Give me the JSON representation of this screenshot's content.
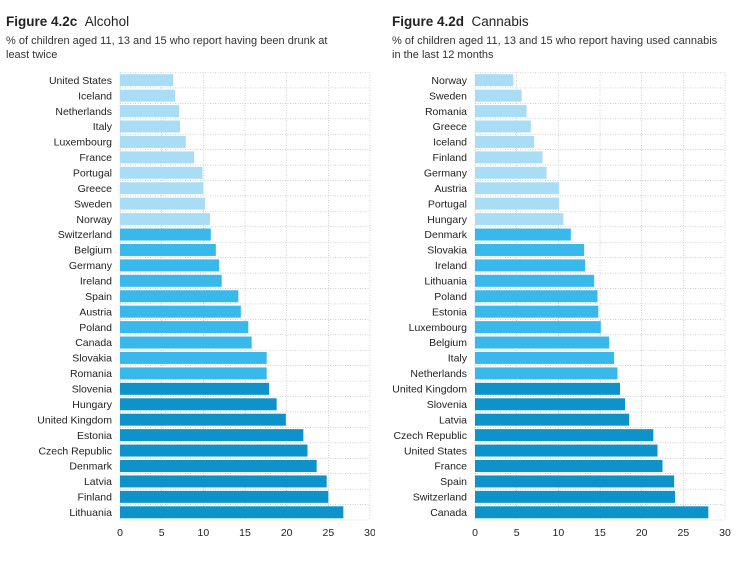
{
  "colors": {
    "light": "#a9dcf5",
    "mid": "#39b9eb",
    "dark": "#0d93c9",
    "grid": "#b5b5b5"
  },
  "chart_data": [
    {
      "type": "bar",
      "orientation": "horizontal",
      "figure_number": "Figure 4.2c",
      "title": "Alcohol",
      "subtitle": "% of children aged 11, 13 and 15 who report having been drunk at least twice",
      "categories": [
        "United States",
        "Iceland",
        "Netherlands",
        "Italy",
        "Luxembourg",
        "France",
        "Portugal",
        "Greece",
        "Sweden",
        "Norway",
        "Switzerland",
        "Belgium",
        "Germany",
        "Ireland",
        "Spain",
        "Austria",
        "Poland",
        "Canada",
        "Slovakia",
        "Romania",
        "Slovenia",
        "Hungary",
        "United Kingdom",
        "Estonia",
        "Czech Republic",
        "Denmark",
        "Latvia",
        "Finland",
        "Lithuania"
      ],
      "values": [
        6.4,
        6.6,
        7.1,
        7.2,
        7.9,
        8.9,
        9.9,
        10.0,
        10.2,
        10.8,
        10.9,
        11.5,
        11.9,
        12.2,
        14.2,
        14.5,
        15.4,
        15.8,
        17.6,
        17.6,
        17.9,
        18.8,
        19.9,
        22.0,
        22.5,
        23.6,
        24.8,
        25.0,
        26.8
      ],
      "tiers": [
        "light",
        "light",
        "light",
        "light",
        "light",
        "light",
        "light",
        "light",
        "light",
        "light",
        "mid",
        "mid",
        "mid",
        "mid",
        "mid",
        "mid",
        "mid",
        "mid",
        "mid",
        "mid",
        "dark",
        "dark",
        "dark",
        "dark",
        "dark",
        "dark",
        "dark",
        "dark",
        "dark"
      ],
      "xlim": [
        0,
        30
      ],
      "xticks": [
        0,
        5,
        10,
        15,
        20,
        25,
        30
      ],
      "grid": true
    },
    {
      "type": "bar",
      "orientation": "horizontal",
      "figure_number": "Figure 4.2d",
      "title": "Cannabis",
      "subtitle": "% of children aged 11, 13 and 15 who report having used cannabis in the last 12 months",
      "categories": [
        "Norway",
        "Sweden",
        "Romania",
        "Greece",
        "Iceland",
        "Finland",
        "Germany",
        "Austria",
        "Portugal",
        "Hungary",
        "Denmark",
        "Slovakia",
        "Ireland",
        "Lithuania",
        "Poland",
        "Estonia",
        "Luxembourg",
        "Belgium",
        "Italy",
        "Netherlands",
        "United Kingdom",
        "Slovenia",
        "Latvia",
        "Czech Republic",
        "United States",
        "France",
        "Spain",
        "Switzerland",
        "Canada"
      ],
      "values": [
        4.6,
        5.6,
        6.2,
        6.7,
        7.1,
        8.1,
        8.6,
        10.1,
        10.1,
        10.6,
        11.5,
        13.1,
        13.2,
        14.3,
        14.7,
        14.8,
        15.1,
        16.1,
        16.7,
        17.1,
        17.4,
        18.0,
        18.5,
        21.4,
        21.9,
        22.5,
        23.9,
        24.0,
        28.0
      ],
      "tiers": [
        "light",
        "light",
        "light",
        "light",
        "light",
        "light",
        "light",
        "light",
        "light",
        "light",
        "mid",
        "mid",
        "mid",
        "mid",
        "mid",
        "mid",
        "mid",
        "mid",
        "mid",
        "mid",
        "dark",
        "dark",
        "dark",
        "dark",
        "dark",
        "dark",
        "dark",
        "dark",
        "dark"
      ],
      "xlim": [
        0,
        30
      ],
      "xticks": [
        0,
        5,
        10,
        15,
        20,
        25,
        30
      ],
      "grid": true
    }
  ]
}
